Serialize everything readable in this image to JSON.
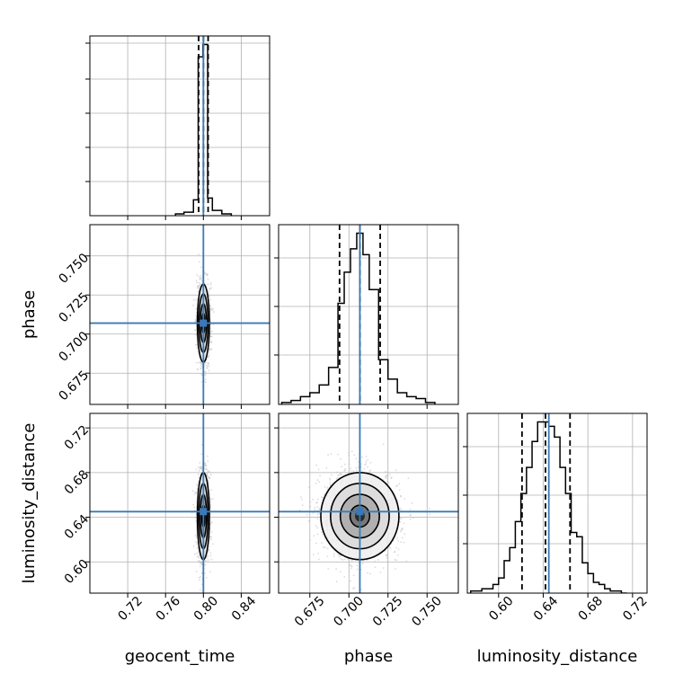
{
  "chart_data": {
    "type": "corner",
    "parameters": [
      "geocent_time",
      "phase",
      "luminosity_distance"
    ],
    "axis_labels": {
      "x": [
        "geocent_time",
        "phase",
        "luminosity_distance"
      ],
      "y": [
        "",
        "phase",
        "luminosity_distance"
      ]
    },
    "ranges": {
      "geocent_time": [
        0.68,
        0.87
      ],
      "phase": [
        0.655,
        0.77
      ],
      "luminosity_distance": [
        0.572,
        0.733
      ]
    },
    "ticks": {
      "geocent_time": [
        "0.72",
        "0.76",
        "0.80",
        "0.84"
      ],
      "phase": [
        "0.675",
        "0.700",
        "0.725",
        "0.750"
      ],
      "luminosity_distance": [
        "0.60",
        "0.64",
        "0.68",
        "0.72"
      ]
    },
    "truths": {
      "geocent_time": 0.8,
      "phase": 0.707,
      "luminosity_distance": 0.645
    },
    "quantiles": {
      "geocent_time": [
        0.795,
        0.8,
        0.805
      ],
      "phase": [
        0.694,
        0.707,
        0.72
      ],
      "luminosity_distance": [
        0.621,
        0.642,
        0.664
      ]
    },
    "histograms": {
      "geocent_time": {
        "edges": [
          0.7705,
          0.7795,
          0.7895,
          0.7945,
          0.7995,
          0.8045,
          0.8095,
          0.8195,
          0.8295
        ],
        "counts": [
          1,
          2,
          9,
          90,
          97,
          10,
          3,
          1
        ]
      },
      "phase": {
        "edges": [
          0.657,
          0.663,
          0.669,
          0.675,
          0.681,
          0.687,
          0.693,
          0.697,
          0.701,
          0.705,
          0.709,
          0.713,
          0.719,
          0.725,
          0.731,
          0.737,
          0.743,
          0.749,
          0.755
        ],
        "counts": [
          1,
          2,
          4,
          6,
          10,
          19,
          52,
          68,
          80,
          88,
          77,
          59,
          23,
          13,
          6,
          4,
          3,
          1
        ]
      },
      "luminosity_distance": {
        "edges": [
          0.575,
          0.585,
          0.595,
          0.6,
          0.605,
          0.61,
          0.615,
          0.62,
          0.625,
          0.63,
          0.635,
          0.64,
          0.645,
          0.65,
          0.655,
          0.66,
          0.665,
          0.67,
          0.675,
          0.68,
          0.685,
          0.69,
          0.695,
          0.7,
          0.705,
          0.71,
          0.715
        ],
        "counts": [
          1,
          2,
          4,
          7,
          15,
          21,
          33,
          46,
          58,
          70,
          79,
          79,
          77,
          72,
          58,
          46,
          28,
          26,
          14,
          9,
          5,
          4,
          2,
          1,
          1,
          0
        ]
      }
    },
    "grid": true,
    "colors": {
      "truth": "#3a79b8",
      "contour": "#000000",
      "hist": "#000000",
      "scatter": "#bdbdbd",
      "grid": "#b0b0b0"
    }
  }
}
